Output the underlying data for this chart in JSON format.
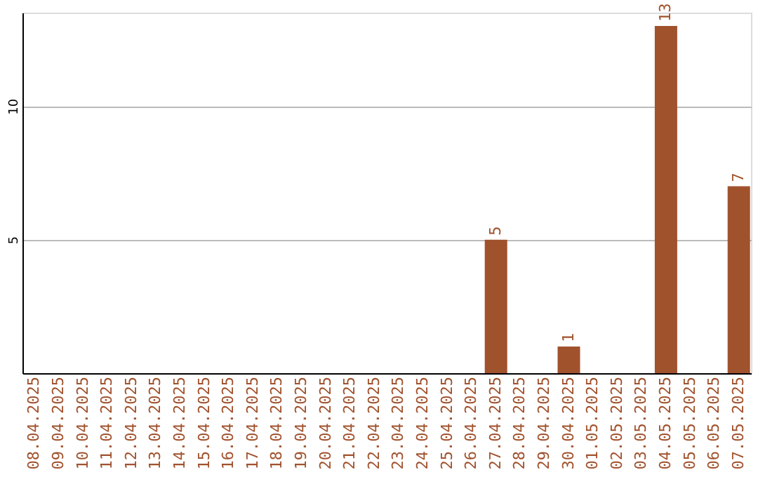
{
  "chart_data": {
    "type": "bar",
    "categories": [
      "08.04.2025",
      "09.04.2025",
      "10.04.2025",
      "11.04.2025",
      "12.04.2025",
      "13.04.2025",
      "14.04.2025",
      "15.04.2025",
      "16.04.2025",
      "17.04.2025",
      "18.04.2025",
      "19.04.2025",
      "20.04.2025",
      "21.04.2025",
      "22.04.2025",
      "23.04.2025",
      "24.04.2025",
      "25.04.2025",
      "26.04.2025",
      "27.04.2025",
      "28.04.2025",
      "29.04.2025",
      "30.04.2025",
      "01.05.2025",
      "02.05.2025",
      "03.05.2025",
      "04.05.2025",
      "05.05.2025",
      "06.05.2025",
      "07.05.2025"
    ],
    "values": [
      0,
      0,
      0,
      0,
      0,
      0,
      0,
      0,
      0,
      0,
      0,
      0,
      0,
      0,
      0,
      0,
      0,
      0,
      0,
      5,
      0,
      0,
      1,
      0,
      0,
      0,
      13,
      0,
      0,
      7
    ],
    "value_labels": [
      null,
      null,
      null,
      null,
      null,
      null,
      null,
      null,
      null,
      null,
      null,
      null,
      null,
      null,
      null,
      null,
      null,
      null,
      null,
      "5",
      null,
      null,
      "1",
      null,
      null,
      null,
      "13",
      null,
      null,
      "7"
    ],
    "color": "#a0522d",
    "ylim": [
      0,
      13.5
    ],
    "yticks": [
      5,
      10
    ],
    "grid": "y"
  }
}
